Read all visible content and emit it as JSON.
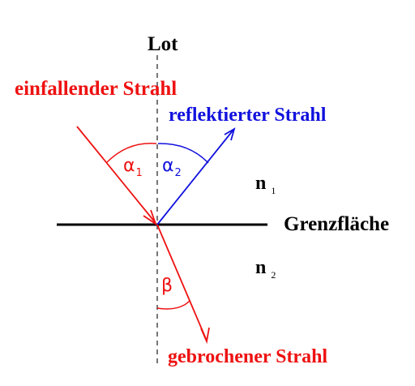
{
  "labels": {
    "lot": "Lot",
    "incident": "einfallender Strahl",
    "reflected": "reflektierter Strahl",
    "interface": "Grenzfläche",
    "refracted": "gebrochener Strahl",
    "n1": "n",
    "n1_sub": "1",
    "n2": "n",
    "n2_sub": "2",
    "alpha1": "α",
    "alpha1_sub": "1",
    "alpha2": "α",
    "alpha2_sub": "2",
    "beta": "β"
  },
  "colors": {
    "incident": "#ee1111",
    "reflected": "#1111dd",
    "refracted": "#ee1111",
    "interface": "#000000",
    "normal": "#555555",
    "text": "#000000"
  }
}
